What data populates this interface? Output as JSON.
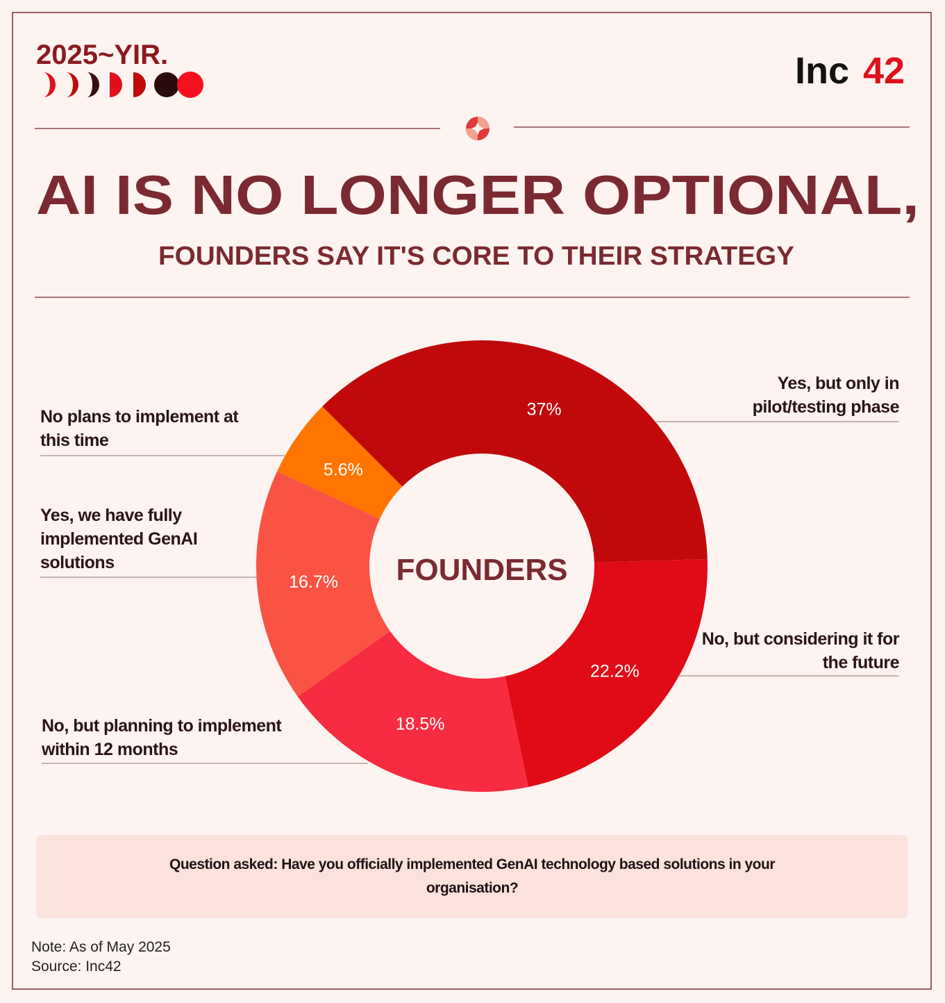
{
  "chart_data": {
    "type": "donut",
    "brand": "2025~YIR.",
    "publisher": {
      "name": "Inc",
      "accent": "42"
    },
    "title": "AI IS NO LONGER OPTIONAL,",
    "subtitle": "FOUNDERS SAY IT'S CORE TO THEIR STRATEGY",
    "center_label": "FOUNDERS",
    "categories": [
      "Yes, but only in pilot/testing phase",
      "No, but considering it for the future",
      "No, but planning to implement within 12 months",
      "Yes, we have fully implemented GenAI solutions",
      "No plans to implement at this time"
    ],
    "values": [
      37,
      22.2,
      18.5,
      16.7,
      5.6
    ],
    "value_labels": [
      "37%",
      "22.2%",
      "18.5%",
      "16.7%",
      "5.6%"
    ],
    "colors": [
      "#c1090b",
      "#e00b16",
      "#f72c40",
      "#fb5343",
      "#ff7500"
    ],
    "question": "Question asked: Have you officially implemented GenAI technology based solutions in your organisation?",
    "note": "Note: As of May 2025",
    "source": "Source: Inc42"
  }
}
